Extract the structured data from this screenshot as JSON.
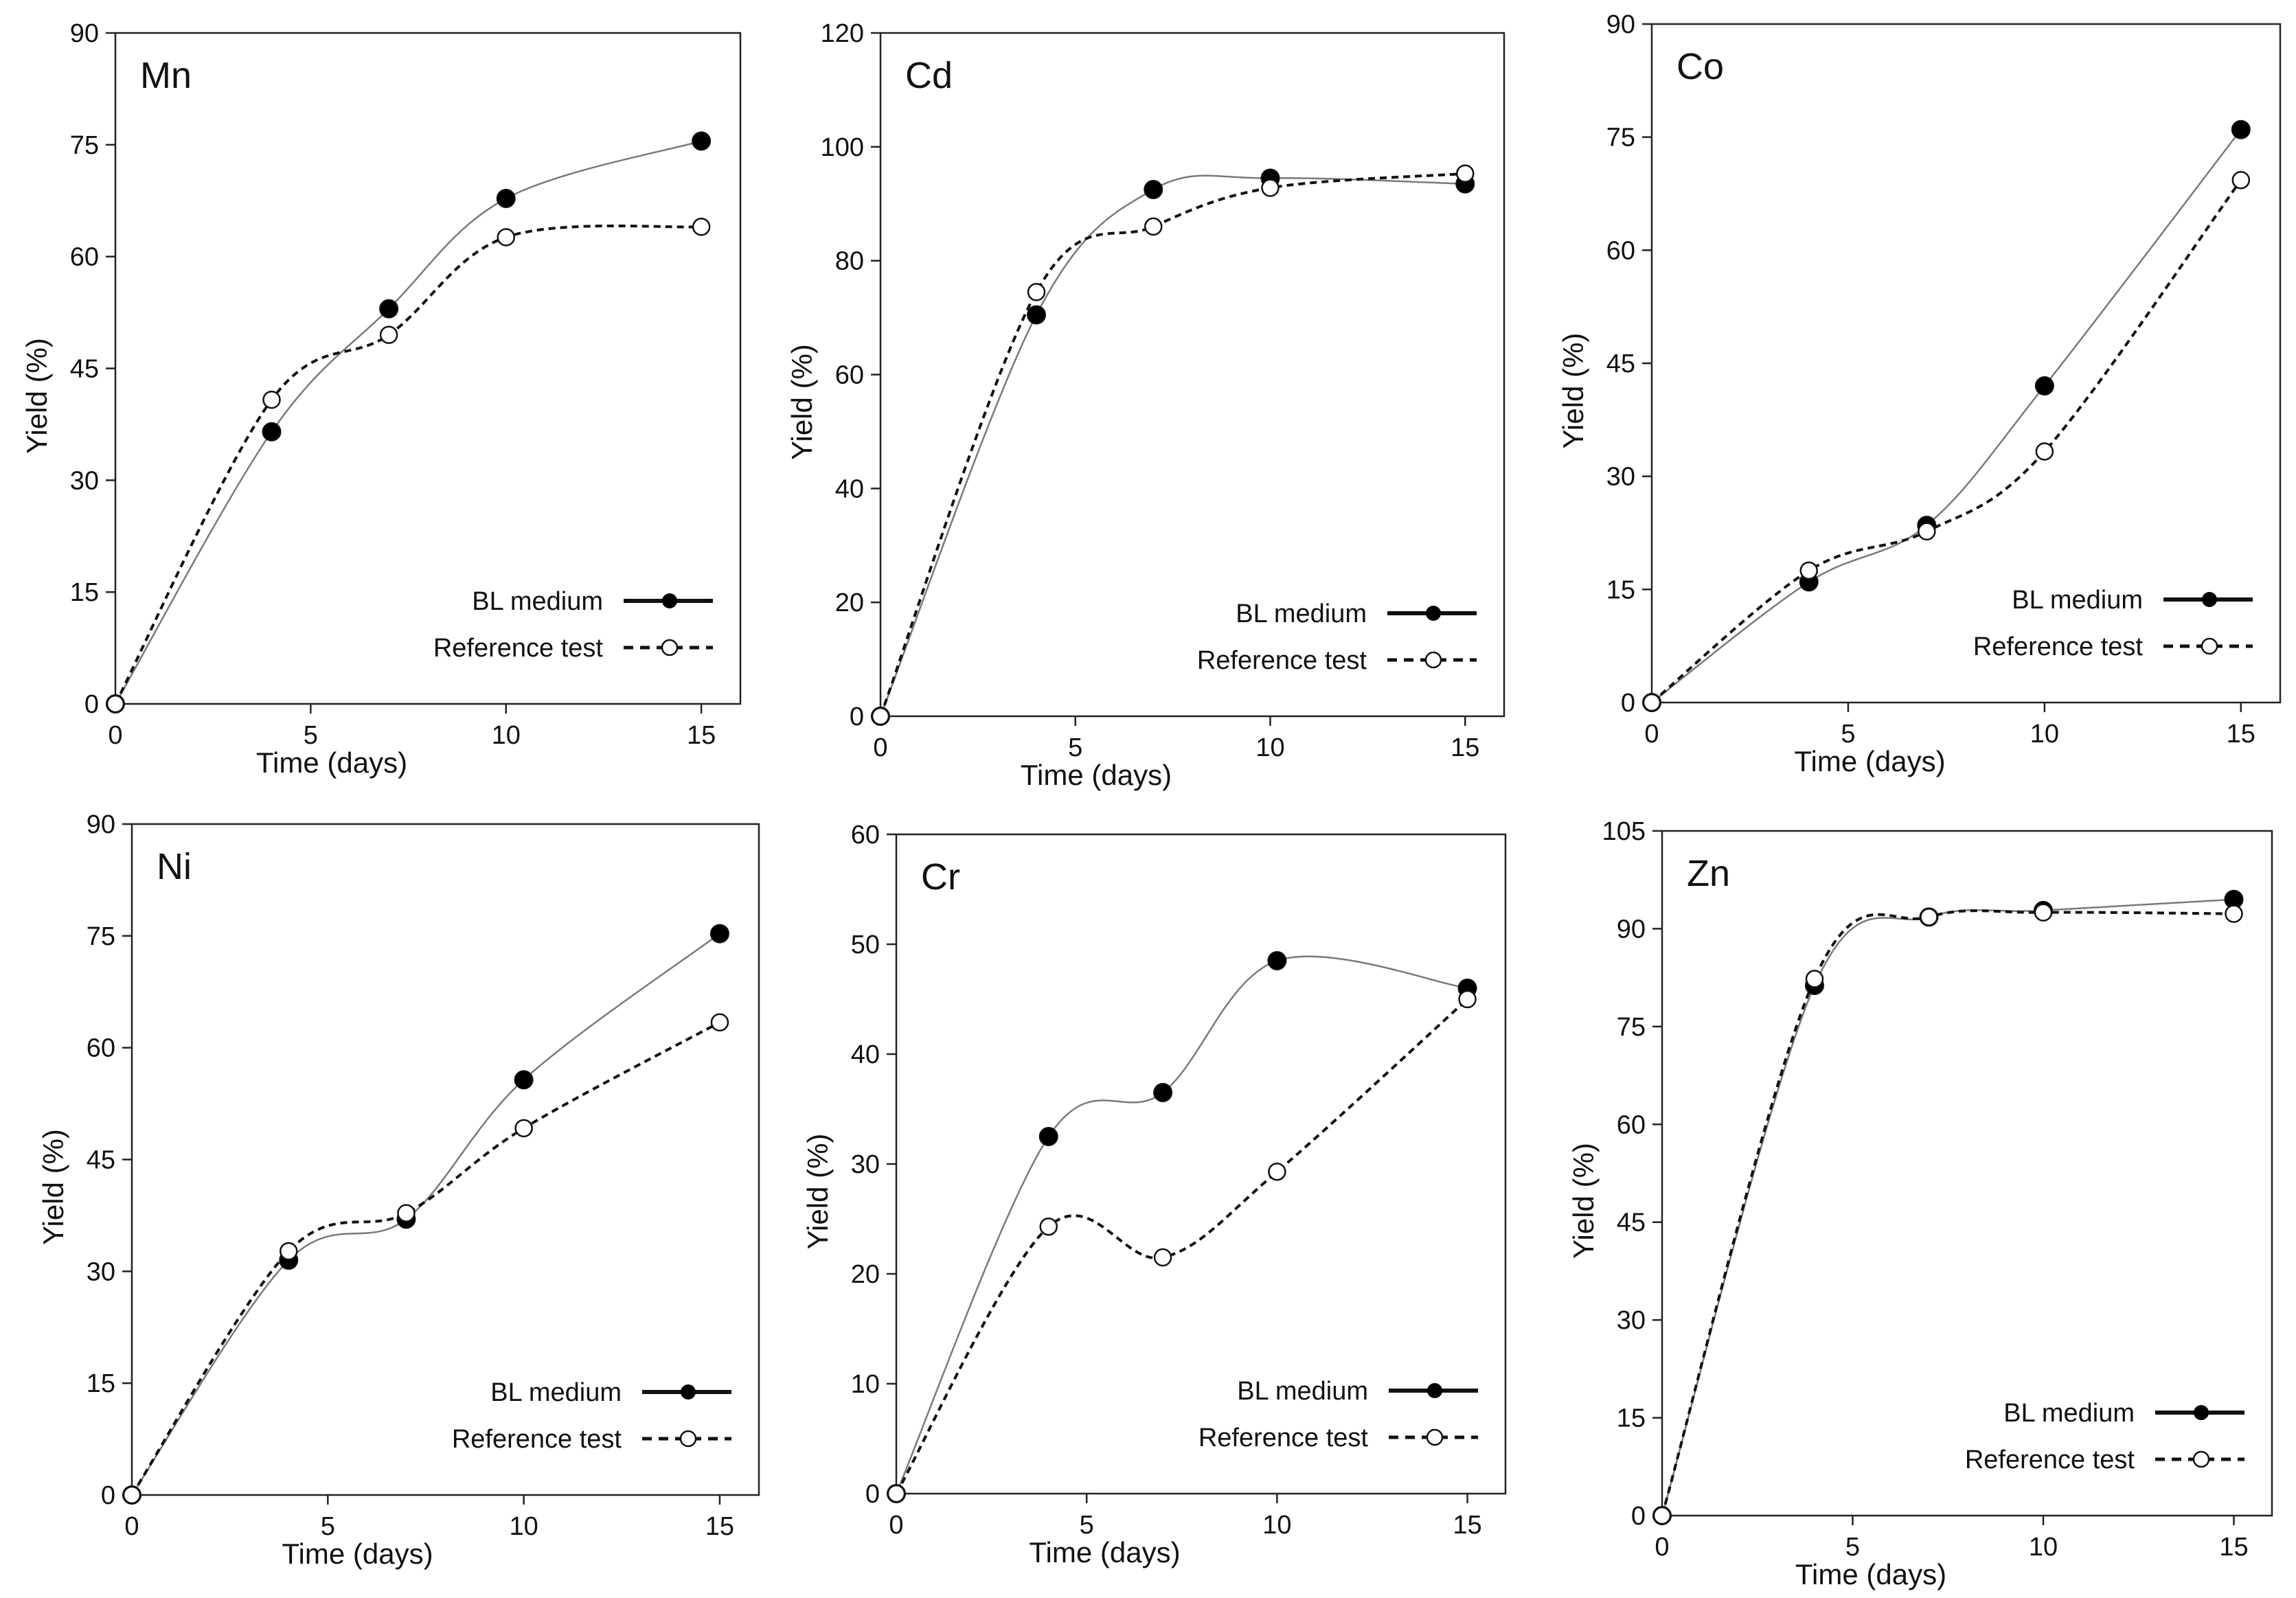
{
  "figure": {
    "xlabel": "Time (days)",
    "ylabel": "Yield (%)",
    "legend": {
      "bl": "BL medium",
      "ref": "Reference test"
    },
    "colors": {
      "line": "#111111",
      "bl_fill": "#000000",
      "ref_fill": "#ffffff",
      "bl_curve": "#7a7a7a"
    }
  },
  "chart_data": [
    {
      "type": "line",
      "title": "Mn",
      "x": [
        0,
        4,
        7,
        10,
        15
      ],
      "xticks": [
        0,
        5,
        10,
        15
      ],
      "xlim": [
        0,
        16
      ],
      "ylim": [
        0,
        90
      ],
      "yticks": [
        0,
        15,
        30,
        45,
        60,
        75,
        90
      ],
      "xlabel": "Time (days)",
      "ylabel": "Yield (%)",
      "legend_position": "bottom-right",
      "series": [
        {
          "name": "BL medium",
          "values": [
            0,
            36.5,
            53,
            67.8,
            75.5
          ]
        },
        {
          "name": "Reference test",
          "values": [
            0,
            40.8,
            49.5,
            62.6,
            64
          ]
        }
      ]
    },
    {
      "type": "line",
      "title": "Cd",
      "x": [
        0,
        4,
        7,
        10,
        15
      ],
      "xticks": [
        0,
        5,
        10,
        15
      ],
      "xlim": [
        0,
        16
      ],
      "ylim": [
        0,
        120
      ],
      "yticks": [
        0,
        20,
        40,
        60,
        80,
        100,
        120
      ],
      "xlabel": "Time (days)",
      "ylabel": "Yield (%)",
      "legend_position": "bottom-right",
      "series": [
        {
          "name": "BL medium",
          "values": [
            0,
            70.5,
            92.5,
            94.5,
            93.5
          ]
        },
        {
          "name": "Reference test",
          "values": [
            0,
            74.5,
            86,
            92.8,
            95.3
          ]
        }
      ]
    },
    {
      "type": "line",
      "title": "Co",
      "x": [
        0,
        4,
        7,
        10,
        15
      ],
      "xticks": [
        0,
        5,
        10,
        15
      ],
      "xlim": [
        0,
        16
      ],
      "ylim": [
        0,
        90
      ],
      "yticks": [
        0,
        15,
        30,
        45,
        60,
        75,
        90
      ],
      "xlabel": "Time (days)",
      "ylabel": "Yield (%)",
      "legend_position": "bottom-right",
      "series": [
        {
          "name": "BL medium",
          "values": [
            0,
            16,
            23.5,
            42,
            76
          ]
        },
        {
          "name": "Reference test",
          "values": [
            0,
            17.5,
            22.7,
            33.3,
            69.3
          ]
        }
      ]
    },
    {
      "type": "line",
      "title": "Ni",
      "x": [
        0,
        4,
        7,
        10,
        15
      ],
      "xticks": [
        0,
        5,
        10,
        15
      ],
      "xlim": [
        0,
        16
      ],
      "ylim": [
        0,
        90
      ],
      "yticks": [
        0,
        15,
        30,
        45,
        60,
        75,
        90
      ],
      "xlabel": "Time (days)",
      "ylabel": "Yield (%)",
      "legend_position": "bottom-right",
      "series": [
        {
          "name": "BL medium",
          "values": [
            0,
            31.5,
            37,
            55.7,
            75.3
          ]
        },
        {
          "name": "Reference test",
          "values": [
            0,
            32.7,
            37.8,
            49.2,
            63.4
          ]
        }
      ]
    },
    {
      "type": "line",
      "title": "Cr",
      "x": [
        0,
        4,
        7,
        10,
        15
      ],
      "xticks": [
        0,
        5,
        10,
        15
      ],
      "xlim": [
        0,
        16
      ],
      "ylim": [
        0,
        60
      ],
      "yticks": [
        0,
        10,
        20,
        30,
        40,
        50,
        60
      ],
      "xlabel": "Time (days)",
      "ylabel": "Yield (%)",
      "legend_position": "bottom-right",
      "series": [
        {
          "name": "BL medium",
          "values": [
            0,
            32.5,
            36.5,
            48.5,
            46
          ]
        },
        {
          "name": "Reference test",
          "values": [
            0,
            24.3,
            21.5,
            29.3,
            45
          ]
        }
      ]
    },
    {
      "type": "line",
      "title": "Zn",
      "x": [
        0,
        4,
        7,
        10,
        15
      ],
      "xticks": [
        0,
        5,
        10,
        15
      ],
      "xlim": [
        0,
        16
      ],
      "ylim": [
        0,
        105
      ],
      "yticks": [
        0,
        15,
        30,
        45,
        60,
        75,
        90,
        105
      ],
      "xlabel": "Time (days)",
      "ylabel": "Yield (%)",
      "legend_position": "bottom-right",
      "series": [
        {
          "name": "BL medium",
          "values": [
            0,
            81.3,
            91.8,
            92.8,
            94.5
          ]
        },
        {
          "name": "Reference test",
          "values": [
            0,
            82.3,
            91.8,
            92.5,
            92.3
          ]
        }
      ]
    }
  ]
}
